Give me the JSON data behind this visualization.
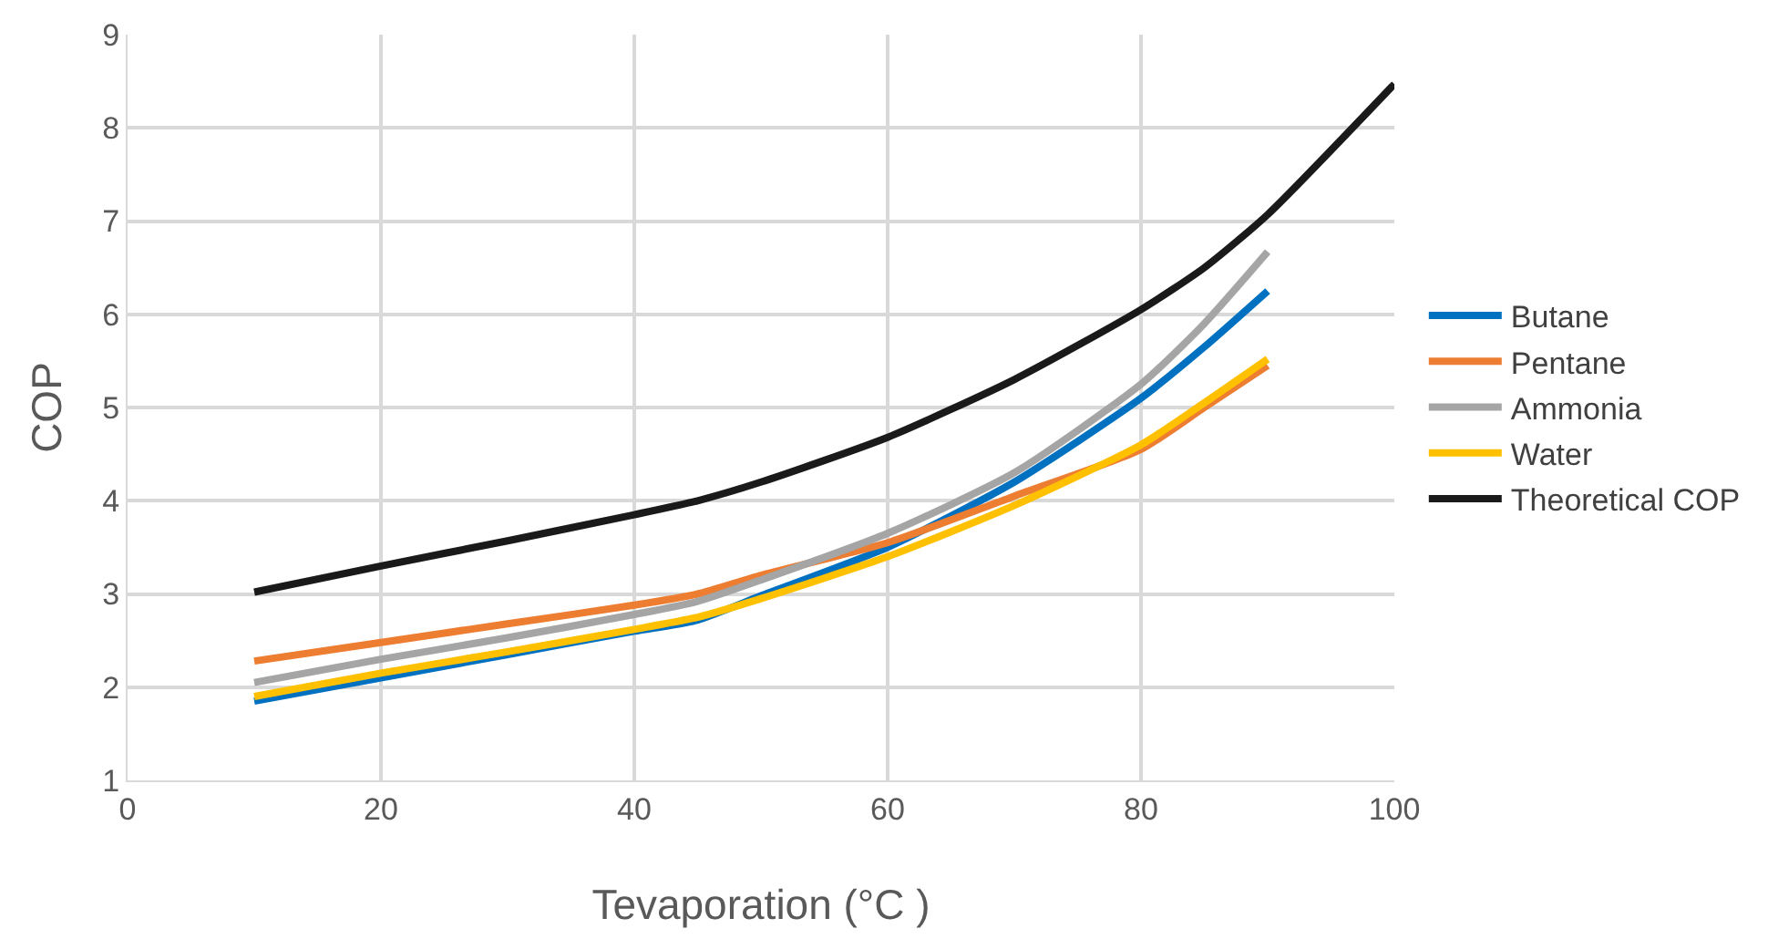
{
  "chart_data": {
    "type": "line",
    "xlabel": "Tevaporation (°C )",
    "ylabel": "COP",
    "xlim": [
      0,
      100
    ],
    "xticks": [
      0,
      20,
      40,
      60,
      80,
      100
    ],
    "ylim": [
      1,
      9
    ],
    "yticks": [
      1,
      2,
      3,
      4,
      5,
      6,
      7,
      8,
      9
    ],
    "grid": true,
    "legend": "right",
    "marker": "none",
    "line_style": "solid",
    "series": [
      {
        "name": "Butane",
        "color": "#0070c0",
        "x": [
          10,
          20,
          30,
          40,
          45,
          50,
          60,
          70,
          80,
          85,
          90
        ],
        "values": [
          1.85,
          2.1,
          2.35,
          2.6,
          2.72,
          2.98,
          3.5,
          4.2,
          5.1,
          5.65,
          6.25
        ]
      },
      {
        "name": "Pentane",
        "color": "#ed7d31",
        "x": [
          10,
          20,
          30,
          40,
          45,
          50,
          60,
          70,
          80,
          85,
          90
        ],
        "values": [
          2.28,
          2.48,
          2.68,
          2.88,
          3.0,
          3.2,
          3.55,
          4.05,
          4.55,
          5.0,
          5.45
        ]
      },
      {
        "name": "Ammonia",
        "color": "#a5a5a5",
        "x": [
          10,
          20,
          30,
          40,
          45,
          50,
          60,
          70,
          80,
          85,
          90
        ],
        "values": [
          2.05,
          2.3,
          2.53,
          2.78,
          2.92,
          3.15,
          3.65,
          4.3,
          5.25,
          5.9,
          6.67
        ]
      },
      {
        "name": "Water",
        "color": "#ffc000",
        "x": [
          10,
          20,
          30,
          40,
          45,
          50,
          60,
          70,
          80,
          85,
          90
        ],
        "values": [
          1.9,
          2.15,
          2.38,
          2.62,
          2.75,
          2.95,
          3.4,
          3.95,
          4.6,
          5.05,
          5.52
        ]
      },
      {
        "name": "Theoretical COP",
        "color": "#1a1a1a",
        "x": [
          10,
          20,
          30,
          40,
          45,
          50,
          60,
          70,
          80,
          85,
          90,
          100
        ],
        "values": [
          3.02,
          3.3,
          3.57,
          3.85,
          4.0,
          4.2,
          4.68,
          5.3,
          6.05,
          6.5,
          7.07,
          8.47
        ]
      }
    ]
  }
}
